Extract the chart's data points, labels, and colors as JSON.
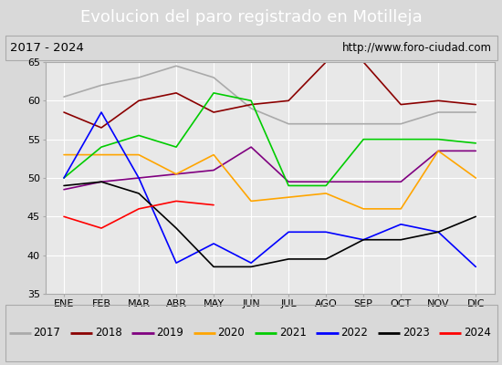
{
  "title": "Evolucion del paro registrado en Motilleja",
  "subtitle_left": "2017 - 2024",
  "subtitle_right": "http://www.foro-ciudad.com",
  "months": [
    "ENE",
    "FEB",
    "MAR",
    "ABR",
    "MAY",
    "JUN",
    "JUL",
    "AGO",
    "SEP",
    "OCT",
    "NOV",
    "DIC"
  ],
  "ylim": [
    35,
    65
  ],
  "yticks": [
    35,
    40,
    45,
    50,
    55,
    60,
    65
  ],
  "series": {
    "2017": {
      "color": "#aaaaaa",
      "values": [
        60.5,
        62,
        63,
        64.5,
        63,
        59,
        57,
        57,
        57,
        57,
        58.5,
        58.5
      ]
    },
    "2018": {
      "color": "#8b0000",
      "values": [
        58.5,
        56.5,
        60,
        61,
        58.5,
        59.5,
        60,
        65,
        65,
        59.5,
        60,
        59.5
      ]
    },
    "2019": {
      "color": "#800080",
      "values": [
        48.5,
        49.5,
        50,
        50.5,
        51,
        54,
        49.5,
        49.5,
        49.5,
        49.5,
        53.5,
        53.5
      ]
    },
    "2020": {
      "color": "#ffa500",
      "values": [
        53,
        53,
        53,
        50.5,
        53,
        47,
        47.5,
        48,
        46,
        46,
        53.5,
        50
      ]
    },
    "2021": {
      "color": "#00cc00",
      "values": [
        50,
        54,
        55.5,
        54,
        61,
        60,
        49,
        49,
        55,
        55,
        55,
        54.5
      ]
    },
    "2022": {
      "color": "#0000ff",
      "values": [
        50,
        58.5,
        50,
        39,
        41.5,
        39,
        43,
        43,
        42,
        44,
        43,
        38.5
      ]
    },
    "2023": {
      "color": "#000000",
      "values": [
        49,
        49.5,
        48,
        43.5,
        38.5,
        38.5,
        39.5,
        39.5,
        42,
        42,
        43,
        45
      ]
    },
    "2024": {
      "color": "#ff0000",
      "values": [
        45,
        43.5,
        46,
        47,
        46.5,
        null,
        null,
        null,
        null,
        null,
        null,
        null
      ]
    }
  },
  "title_bg_color": "#4472c4",
  "title_color": "#ffffff",
  "subtitle_bg_color": "#d9d9d9",
  "plot_bg_color": "#e8e8e8",
  "grid_color": "#ffffff",
  "legend_bg_color": "#f0f0f0",
  "outer_bg_color": "#d9d9d9",
  "title_fontsize": 13,
  "axis_fontsize": 8,
  "legend_fontsize": 8.5
}
